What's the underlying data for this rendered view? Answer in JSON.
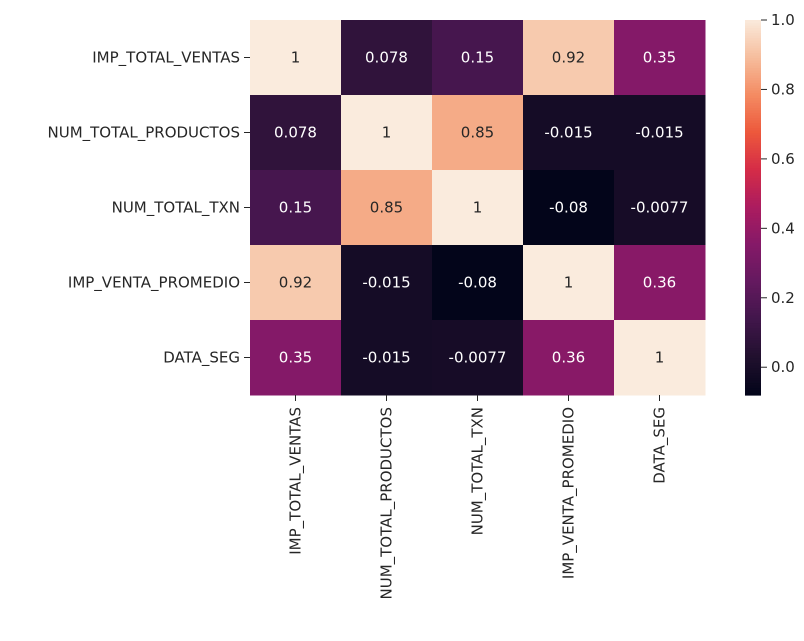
{
  "chart_data": {
    "type": "heatmap",
    "rows": [
      "IMP_TOTAL_VENTAS",
      "NUM_TOTAL_PRODUCTOS",
      "NUM_TOTAL_TXN",
      "IMP_VENTA_PROMEDIO",
      "DATA_SEG"
    ],
    "columns": [
      "IMP_TOTAL_VENTAS",
      "NUM_TOTAL_PRODUCTOS",
      "NUM_TOTAL_TXN",
      "IMP_VENTA_PROMEDIO",
      "DATA_SEG"
    ],
    "values": [
      [
        1,
        0.078,
        0.15,
        0.92,
        0.35
      ],
      [
        0.078,
        1,
        0.85,
        -0.015,
        -0.015
      ],
      [
        0.15,
        0.85,
        1,
        -0.08,
        -0.0077
      ],
      [
        0.92,
        -0.015,
        -0.08,
        1,
        0.36
      ],
      [
        0.35,
        -0.015,
        -0.0077,
        0.36,
        1
      ]
    ],
    "value_labels": [
      [
        "1",
        "0.078",
        "0.15",
        "0.92",
        "0.35"
      ],
      [
        "0.078",
        "1",
        "0.85",
        "-0.015",
        "-0.015"
      ],
      [
        "0.15",
        "0.85",
        "1",
        "-0.08",
        "-0.0077"
      ],
      [
        "0.92",
        "-0.015",
        "-0.08",
        "1",
        "0.36"
      ],
      [
        "0.35",
        "-0.015",
        "-0.0077",
        "0.36",
        "1"
      ]
    ],
    "colormap": "rocket",
    "vmin": -0.08,
    "vmax": 1.0,
    "colorbar": {
      "ticks": [
        0.0,
        0.2,
        0.4,
        0.6,
        0.8,
        1.0
      ],
      "tick_labels": [
        "0.0",
        "0.2",
        "0.4",
        "0.6",
        "0.8",
        "1.0"
      ]
    },
    "annot_colors": {
      "dark_bg_text": "#ffffff",
      "light_bg_text": "#262626"
    },
    "title": "",
    "xlabel": "",
    "ylabel": ""
  }
}
